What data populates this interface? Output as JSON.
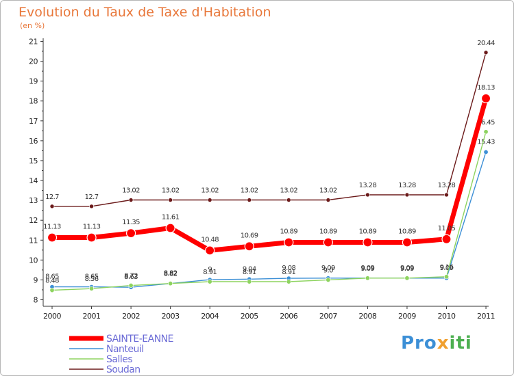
{
  "chart_data": {
    "type": "line",
    "title": "Evolution du Taux de Taxe d'Habitation",
    "subtitle": "(en %)",
    "xlabel": "",
    "ylabel": "",
    "ylim": [
      8,
      21
    ],
    "yticks": [
      8,
      9,
      10,
      11,
      12,
      13,
      14,
      15,
      16,
      17,
      18,
      19,
      20,
      21
    ],
    "categories": [
      "2000",
      "2001",
      "2002",
      "2003",
      "2004",
      "2005",
      "2006",
      "2007",
      "2008",
      "2009",
      "2010",
      "2011"
    ],
    "grid": false,
    "legend_position": "bottom-left",
    "series": [
      {
        "name": "Soudan",
        "color": "#6b1a1a",
        "values": [
          12.7,
          12.7,
          13.02,
          13.02,
          13.02,
          13.02,
          13.02,
          13.02,
          13.28,
          13.28,
          13.28,
          20.44
        ],
        "labels": [
          "12.7",
          "12.7",
          "13.02",
          "13.02",
          "13.02",
          "13.02",
          "13.02",
          "13.02",
          "13.28",
          "13.28",
          "13.28",
          "20.44"
        ]
      },
      {
        "name": "Nanteuil",
        "color": "#3c8fd6",
        "values": [
          8.65,
          8.65,
          8.63,
          8.82,
          9.01,
          9.04,
          9.08,
          9.09,
          9.09,
          9.09,
          9.09,
          15.43
        ],
        "labels": [
          "8.65",
          "8.65",
          "8.63",
          "8.82",
          "9",
          "9.04",
          "9.08",
          "9.09",
          "9.09",
          "9.09",
          "9.09",
          "15.43"
        ]
      },
      {
        "name": "Salles",
        "color": "#8dd35f",
        "values": [
          8.48,
          8.56,
          8.72,
          8.82,
          8.91,
          8.91,
          8.91,
          9.0,
          9.09,
          9.09,
          9.16,
          16.45
        ],
        "labels": [
          "8.48",
          "8.56",
          "8.72",
          "8.82",
          "8.91",
          "8.91",
          "8.91",
          "9.0",
          "9.09",
          "9.09",
          "9.16",
          "16.45"
        ]
      },
      {
        "name": "SAINTE-EANNE",
        "color": "#ff0000",
        "values": [
          11.13,
          11.13,
          11.35,
          11.61,
          10.48,
          10.69,
          10.89,
          10.89,
          10.89,
          10.89,
          11.05,
          18.13
        ],
        "labels": [
          "11.13",
          "11.13",
          "11.35",
          "11.61",
          "10.48",
          "10.69",
          "10.89",
          "10.89",
          "10.89",
          "10.89",
          "11.05",
          "18.13"
        ]
      }
    ],
    "legend": [
      "SAINTE-EANNE",
      "Nanteuil",
      "Salles",
      "Soudan"
    ]
  },
  "brand": {
    "part1": "Pro",
    "part2": "x",
    "part3": "iti"
  }
}
